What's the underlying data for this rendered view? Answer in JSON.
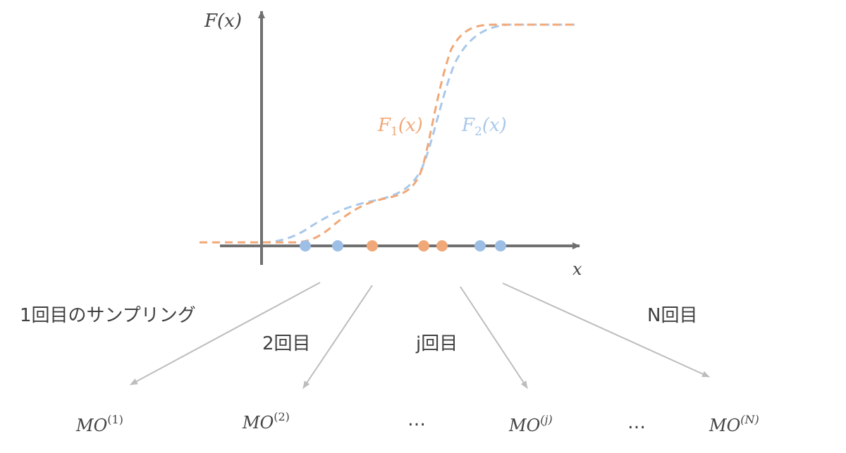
{
  "axes": {
    "y_label": "F(x)",
    "x_label": "x"
  },
  "curves": {
    "f1": {
      "name": "F",
      "subscript": "1",
      "arg": "(x)",
      "color": "#F0A878"
    },
    "f2": {
      "name": "F",
      "subscript": "2",
      "arg": "(x)",
      "color": "#A9C8EA"
    }
  },
  "sample_points": [
    {
      "series": "f2",
      "color": "#9DBFE6"
    },
    {
      "series": "f2",
      "color": "#9DBFE6"
    },
    {
      "series": "f1",
      "color": "#F0A878"
    },
    {
      "series": "f1",
      "color": "#F0A878"
    },
    {
      "series": "f1",
      "color": "#F0A878"
    },
    {
      "series": "f2",
      "color": "#9DBFE6"
    },
    {
      "series": "f2",
      "color": "#9DBFE6"
    }
  ],
  "sampling_labels": {
    "first": "1回目のサンプリング",
    "second": "2回目",
    "jth": "j回目",
    "nth": "N回目"
  },
  "outputs": {
    "symbol": "MO",
    "sup_1": "(1)",
    "sup_2": "(2)",
    "sup_j": "(j)",
    "sup_n": "(N)",
    "ellipsis": "…"
  },
  "colors": {
    "axis": "#707070",
    "arrow": "#BDBDBD",
    "text": "#404040"
  }
}
